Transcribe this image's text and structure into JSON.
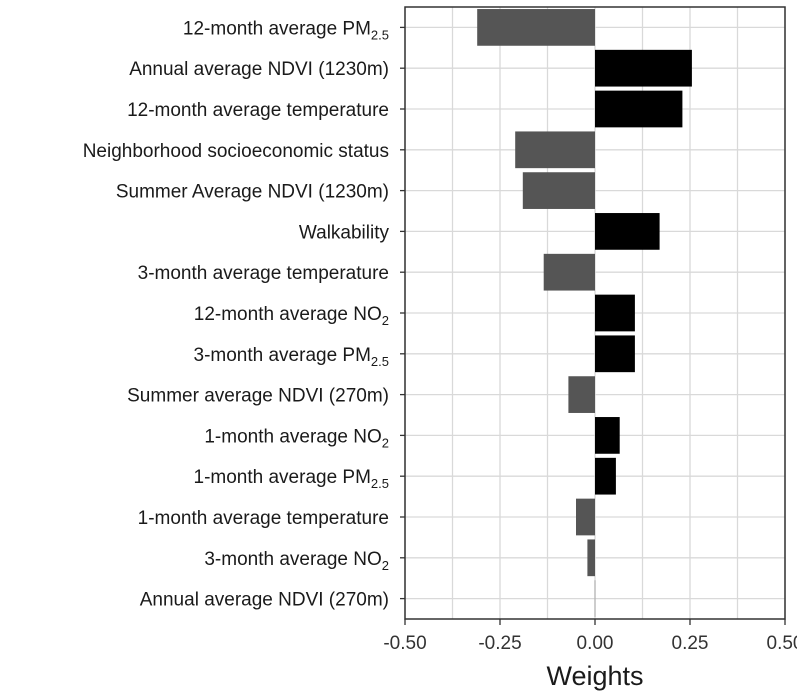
{
  "chart_data": {
    "type": "bar",
    "orientation": "horizontal",
    "title": "",
    "xlabel": "Weights",
    "ylabel": "",
    "xlim": [
      -0.5,
      0.5
    ],
    "xticks": [
      -0.5,
      -0.25,
      0.0,
      0.25,
      0.5
    ],
    "xtick_labels": [
      "-0.50",
      "-0.25",
      "0.00",
      "0.25",
      "0.50"
    ],
    "grid": true,
    "legend": "none",
    "colors": {
      "positive": "#000000",
      "negative": "#555555",
      "grid": "#d9d9d9",
      "frame": "#333333"
    },
    "categories": [
      {
        "base": "12-month average PM",
        "sub": "2.5",
        "value": -0.31
      },
      {
        "base": "Annual average NDVI (1230m)",
        "sub": "",
        "value": 0.255
      },
      {
        "base": "12-month average temperature",
        "sub": "",
        "value": 0.23
      },
      {
        "base": "Neighborhood socioeconomic status",
        "sub": "",
        "value": -0.21
      },
      {
        "base": "Summer Average NDVI (1230m)",
        "sub": "",
        "value": -0.19
      },
      {
        "base": "Walkability",
        "sub": "",
        "value": 0.17
      },
      {
        "base": "3-month average temperature",
        "sub": "",
        "value": -0.135
      },
      {
        "base": "12-month average NO",
        "sub": "2",
        "value": 0.105
      },
      {
        "base": "3-month average PM",
        "sub": "2.5",
        "value": 0.105
      },
      {
        "base": "Summer average NDVI (270m)",
        "sub": "",
        "value": -0.07
      },
      {
        "base": "1-month average NO",
        "sub": "2",
        "value": 0.065
      },
      {
        "base": "1-month average PM",
        "sub": "2.5",
        "value": 0.055
      },
      {
        "base": "1-month average temperature",
        "sub": "",
        "value": -0.05
      },
      {
        "base": "3-month average NO",
        "sub": "2",
        "value": -0.02
      },
      {
        "base": "Annual average NDVI (270m)",
        "sub": "",
        "value": 0.0
      }
    ]
  }
}
